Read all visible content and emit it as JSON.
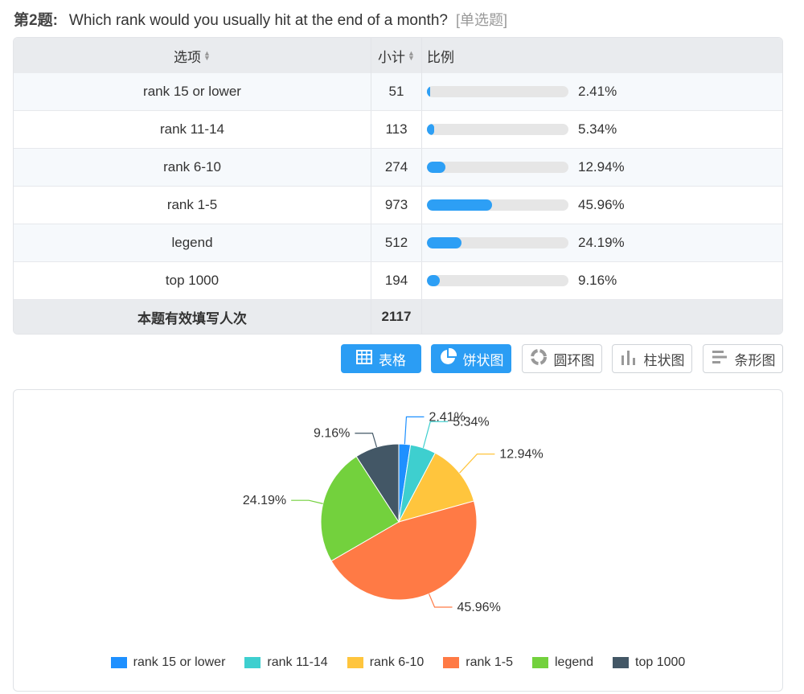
{
  "question": {
    "number": "第2题:",
    "text": "Which rank would you usually hit at the end of a month?",
    "type": "[单选题]"
  },
  "table": {
    "headers": {
      "option": "选项",
      "count": "小计",
      "ratio": "比例"
    },
    "rows": [
      {
        "label": "rank 15 or lower",
        "count": "51",
        "pct": "2.41%",
        "value": 2.41
      },
      {
        "label": "rank 11-14",
        "count": "113",
        "pct": "5.34%",
        "value": 5.34
      },
      {
        "label": "rank 6-10",
        "count": "274",
        "pct": "12.94%",
        "value": 12.94
      },
      {
        "label": "rank 1-5",
        "count": "973",
        "pct": "45.96%",
        "value": 45.96
      },
      {
        "label": "legend",
        "count": "512",
        "pct": "24.19%",
        "value": 24.19
      },
      {
        "label": "top 1000",
        "count": "194",
        "pct": "9.16%",
        "value": 9.16
      }
    ],
    "footer": {
      "label": "本题有效填写人次",
      "total": "2117"
    }
  },
  "view_buttons": [
    {
      "label": "表格",
      "icon": "table-icon",
      "active": true
    },
    {
      "label": "饼状图",
      "icon": "pie-chart-icon",
      "active": true
    },
    {
      "label": "圆环图",
      "icon": "donut-chart-icon",
      "active": false
    },
    {
      "label": "柱状图",
      "icon": "bar-chart-icon",
      "active": false
    },
    {
      "label": "条形图",
      "icon": "horizontal-bar-chart-icon",
      "active": false
    }
  ],
  "colors": {
    "accent": "#2b9df4",
    "bar_fill": "#2d9ff5",
    "bar_track": "#e6e6e6"
  },
  "chart_data": {
    "type": "pie",
    "categories": [
      "rank 15 or lower",
      "rank 11-14",
      "rank 6-10",
      "rank 1-5",
      "legend",
      "top 1000"
    ],
    "values": [
      2.41,
      5.34,
      12.94,
      45.96,
      24.19,
      9.16
    ],
    "labels": [
      "2.41%",
      "5.34%",
      "12.94%",
      "45.96%",
      "24.19%",
      "9.16%"
    ],
    "colors": [
      "#1e90ff",
      "#3ecfcf",
      "#ffc53d",
      "#ff7a45",
      "#73d13d",
      "#435766"
    ],
    "legend_position": "bottom"
  }
}
